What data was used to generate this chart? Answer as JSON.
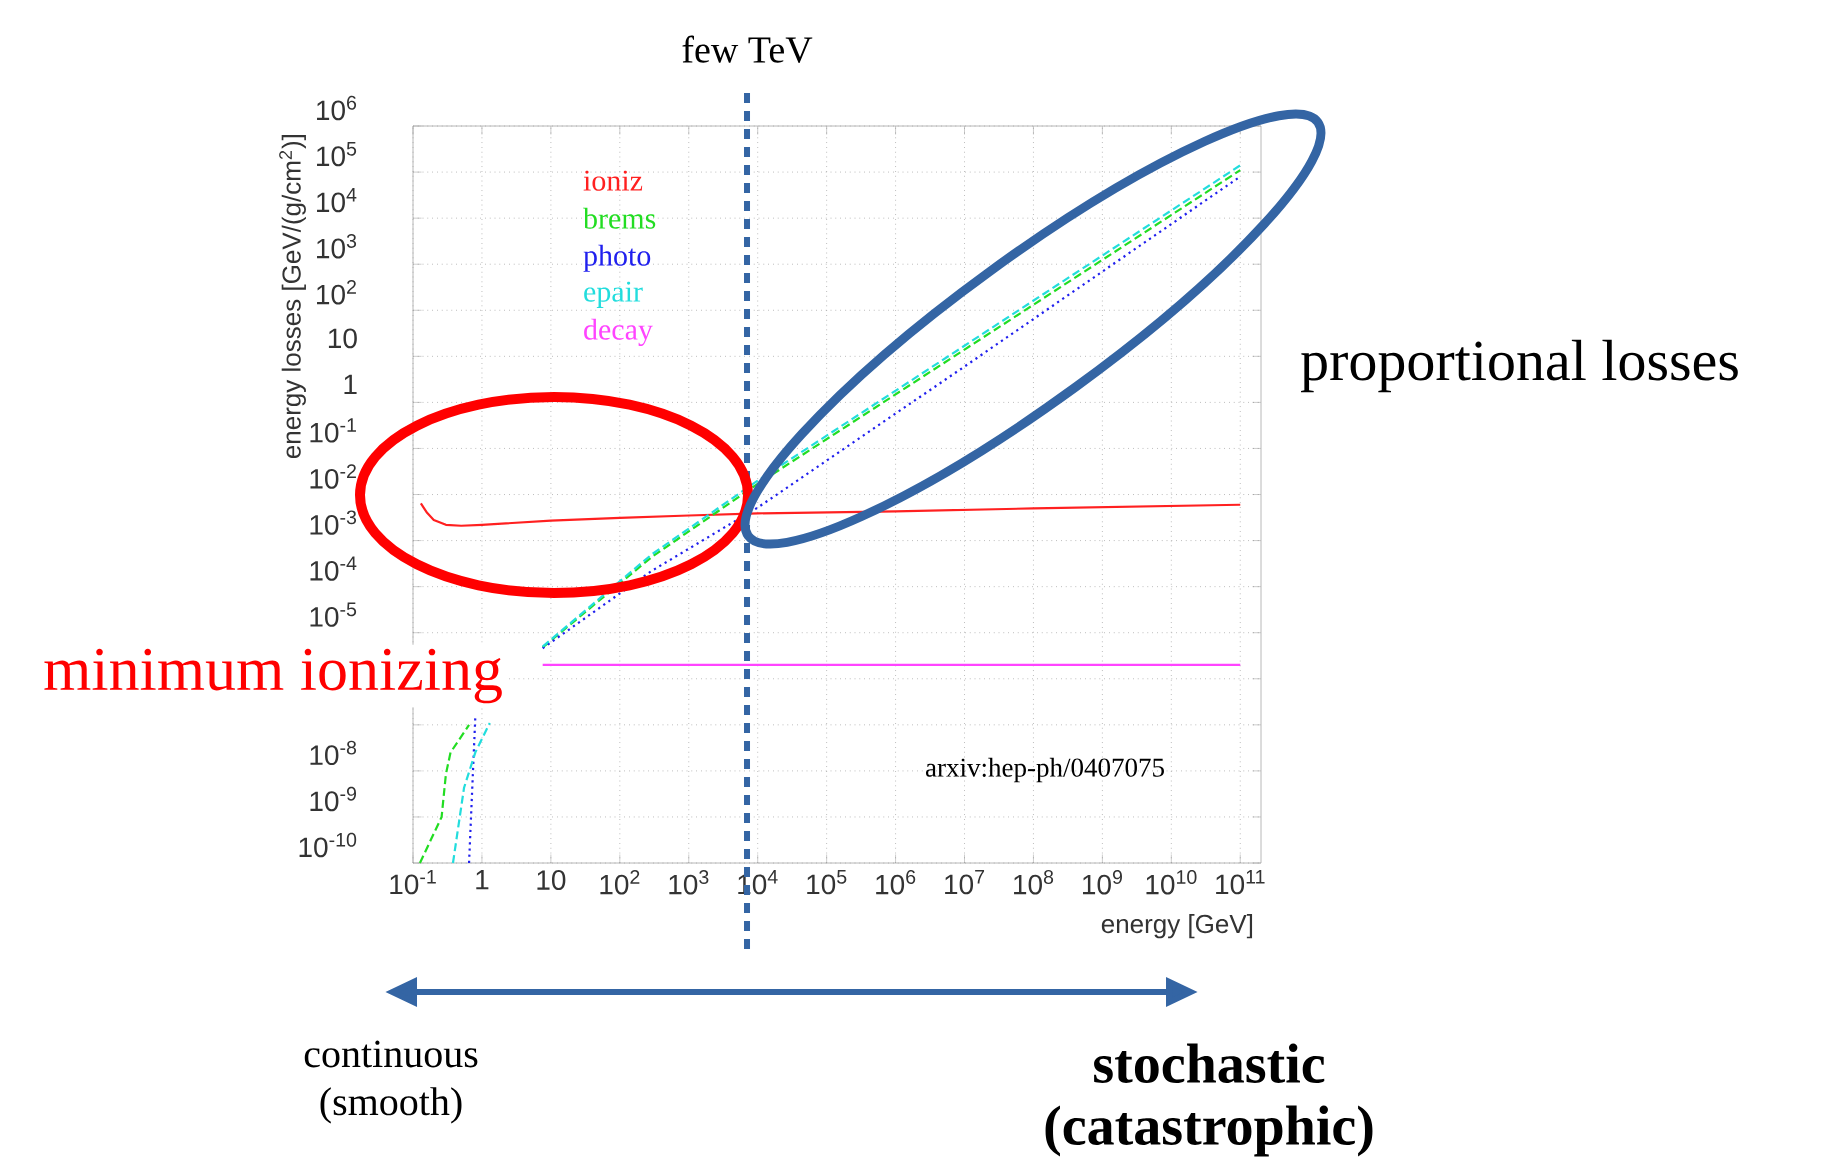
{
  "chart_data": {
    "type": "line",
    "xlabel": "energy [GeV]",
    "ylabel": "energy losses [GeV/(g/cm$^{2}$)]",
    "log": "xy",
    "grid": true,
    "legend": "top left",
    "xlim": [
      0.1,
      200000000000.0
    ],
    "ylim": [
      1e-10,
      1000000.0
    ],
    "xticks": [
      {
        "value": 0.1,
        "label": "10$^{-1}$"
      },
      1,
      10,
      {
        "value": 100,
        "label": "10$^{2}$"
      },
      {
        "value": 1000,
        "label": "10$^{3}$"
      },
      {
        "value": 10000,
        "label": "10$^{4}$"
      },
      {
        "value": 100000,
        "label": "10$^{5}$"
      },
      {
        "value": 1000000,
        "label": "10$^{6}$"
      },
      {
        "value": 10000000,
        "label": "10$^{7}$"
      },
      {
        "value": 100000000,
        "label": "10$^{8}$"
      },
      {
        "value": 1000000000,
        "label": "10$^{9}$"
      },
      {
        "value": 10000000000,
        "label": "10$^{10}$"
      },
      {
        "value": 100000000000,
        "label": "10$^{11}$"
      }
    ],
    "yticks": [
      {
        "value": 1e-10,
        "label": "10$^{-10}$"
      },
      {
        "value": 1e-09,
        "label": "10$^{-9}$"
      },
      {
        "value": 1e-08,
        "label": "10$^{-8}$"
      },
      {
        "value": 1e-07,
        "label": null
      },
      {
        "value": 1e-06,
        "label": null
      },
      {
        "value": 1e-05,
        "label": "10$^{-5}$"
      },
      {
        "value": 0.0001,
        "label": "10$^{-4}$"
      },
      {
        "value": 0.001,
        "label": "10$^{-3}$"
      },
      {
        "value": 0.01,
        "label": "10$^{-2}$"
      },
      {
        "value": 0.1,
        "label": "10$^{-1}$"
      },
      1,
      10,
      {
        "value": 100,
        "label": "10$^{2}$"
      },
      {
        "value": 1000,
        "label": "10$^{3}$"
      },
      {
        "value": 10000,
        "label": "10$^{4}$"
      },
      {
        "value": 100000,
        "label": "10$^{5}$"
      },
      {
        "value": 1000000,
        "label": "10$^{6}$"
      }
    ],
    "series": [
      {
        "name": "ioniz",
        "color": "#ff2020",
        "line_style": "solid",
        "x": [
          0.13,
          0.16,
          0.2,
          0.3,
          0.5,
          1,
          10,
          100,
          1000,
          10000,
          1000000,
          100000000,
          100000000000
        ],
        "values": [
          0.0064,
          0.004,
          0.0028,
          0.0022,
          0.0021,
          0.0022,
          0.0027,
          0.0031,
          0.0035,
          0.0039,
          0.0043,
          0.005,
          0.006
        ]
      },
      {
        "name": "brems",
        "color": "#22dd22",
        "line_style": "dashed",
        "x": [
          0.126,
          0.26,
          0.3,
          0.35,
          0.65,
          2,
          7.6,
          290,
          10000,
          10000000,
          100000000000
        ],
        "values": [
          1e-10,
          1e-09,
          8.5e-09,
          2.5e-08,
          1e-07,
          null,
          4.8e-06,
          0.00044,
          0.017,
          14,
          110000
        ]
      },
      {
        "name": "photo",
        "color": "#2020ee",
        "line_style": "dotted",
        "x": [
          0.65,
          0.8,
          2,
          7.6,
          290,
          10000,
          10000000,
          100000000000
        ],
        "values": [
          1e-10,
          1.4e-07,
          null,
          4.6e-06,
          0.00022,
          0.0052,
          6,
          80000
        ]
      },
      {
        "name": "epair",
        "color": "#22dddd",
        "line_style": "dashed",
        "x": [
          0.38,
          0.55,
          0.8,
          1.3,
          2,
          7.6,
          290,
          10000,
          10000000,
          100000000000
        ],
        "values": [
          1e-10,
          4.3e-09,
          2.5e-08,
          1.1e-07,
          null,
          5e-06,
          0.0005,
          0.02,
          17,
          140000
        ]
      },
      {
        "name": "decay",
        "color": "#ff44ff",
        "line_style": "solid",
        "x": [
          7.6,
          100000000000
        ],
        "values": [
          2e-06,
          2e-06
        ]
      }
    ],
    "ref_lines": [
      {
        "axis": "x",
        "value": 7000,
        "label": "few TeV",
        "color": "#3465a4",
        "line_style": "dashed"
      }
    ],
    "annotations": [
      "minimum ionizing",
      "proportional losses",
      "continuous (smooth)",
      "stochastic (catastrophic)",
      "arxiv:hep-ph/0407075"
    ]
  }
}
